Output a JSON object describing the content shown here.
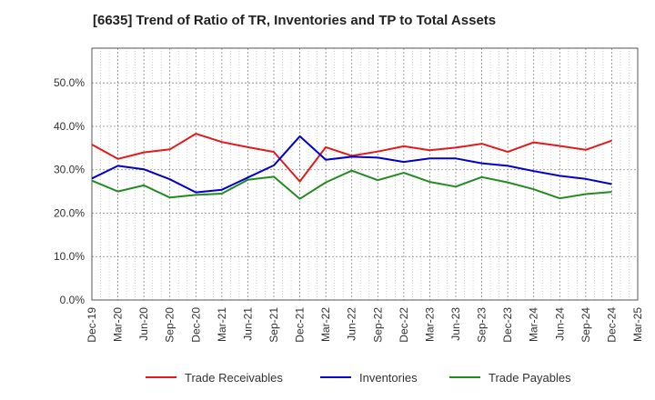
{
  "title": "[6635]  Trend of Ratio of TR, Inventories and TP to Total Assets",
  "chart_data": {
    "type": "line",
    "title": "[6635]  Trend of Ratio of TR, Inventories and TP to Total Assets",
    "xlabel": "",
    "ylabel": "",
    "categories": [
      "Dec-19",
      "Mar-20",
      "Jun-20",
      "Sep-20",
      "Dec-20",
      "Mar-21",
      "Jun-21",
      "Sep-21",
      "Dec-21",
      "Mar-22",
      "Jun-22",
      "Sep-22",
      "Dec-22",
      "Mar-23",
      "Jun-23",
      "Sep-23",
      "Dec-23",
      "Mar-24",
      "Jun-24",
      "Sep-24",
      "Dec-24",
      "Mar-25"
    ],
    "ylim": [
      0,
      58
    ],
    "y_ticks": [
      0,
      10,
      20,
      30,
      40,
      50
    ],
    "y_tick_labels": [
      "0.0%",
      "10.0%",
      "20.0%",
      "30.0%",
      "40.0%",
      "50.0%"
    ],
    "grid": true,
    "legend_position": "bottom",
    "series": [
      {
        "name": "Trade Receivables",
        "color": "#e31a1c",
        "values": [
          35.8,
          32.5,
          34.0,
          34.7,
          38.3,
          36.4,
          35.2,
          34.1,
          27.3,
          35.2,
          33.2,
          34.2,
          35.4,
          34.5,
          35.1,
          36.0,
          34.1,
          36.3,
          35.5,
          34.6,
          36.7,
          null
        ]
      },
      {
        "name": "Inventories",
        "color": "#0000cc",
        "values": [
          28.0,
          30.9,
          30.1,
          27.8,
          24.8,
          25.4,
          28.2,
          31.0,
          37.7,
          32.3,
          33.0,
          32.8,
          31.8,
          32.6,
          32.6,
          31.5,
          30.9,
          29.7,
          28.6,
          27.9,
          26.7,
          null
        ]
      },
      {
        "name": "Trade Payables",
        "color": "#228b22",
        "values": [
          27.5,
          25.0,
          26.4,
          23.6,
          24.2,
          24.5,
          27.7,
          28.4,
          23.3,
          27.1,
          29.8,
          27.6,
          29.3,
          27.2,
          26.1,
          28.3,
          27.1,
          25.5,
          23.4,
          24.4,
          24.9,
          null
        ]
      }
    ]
  }
}
